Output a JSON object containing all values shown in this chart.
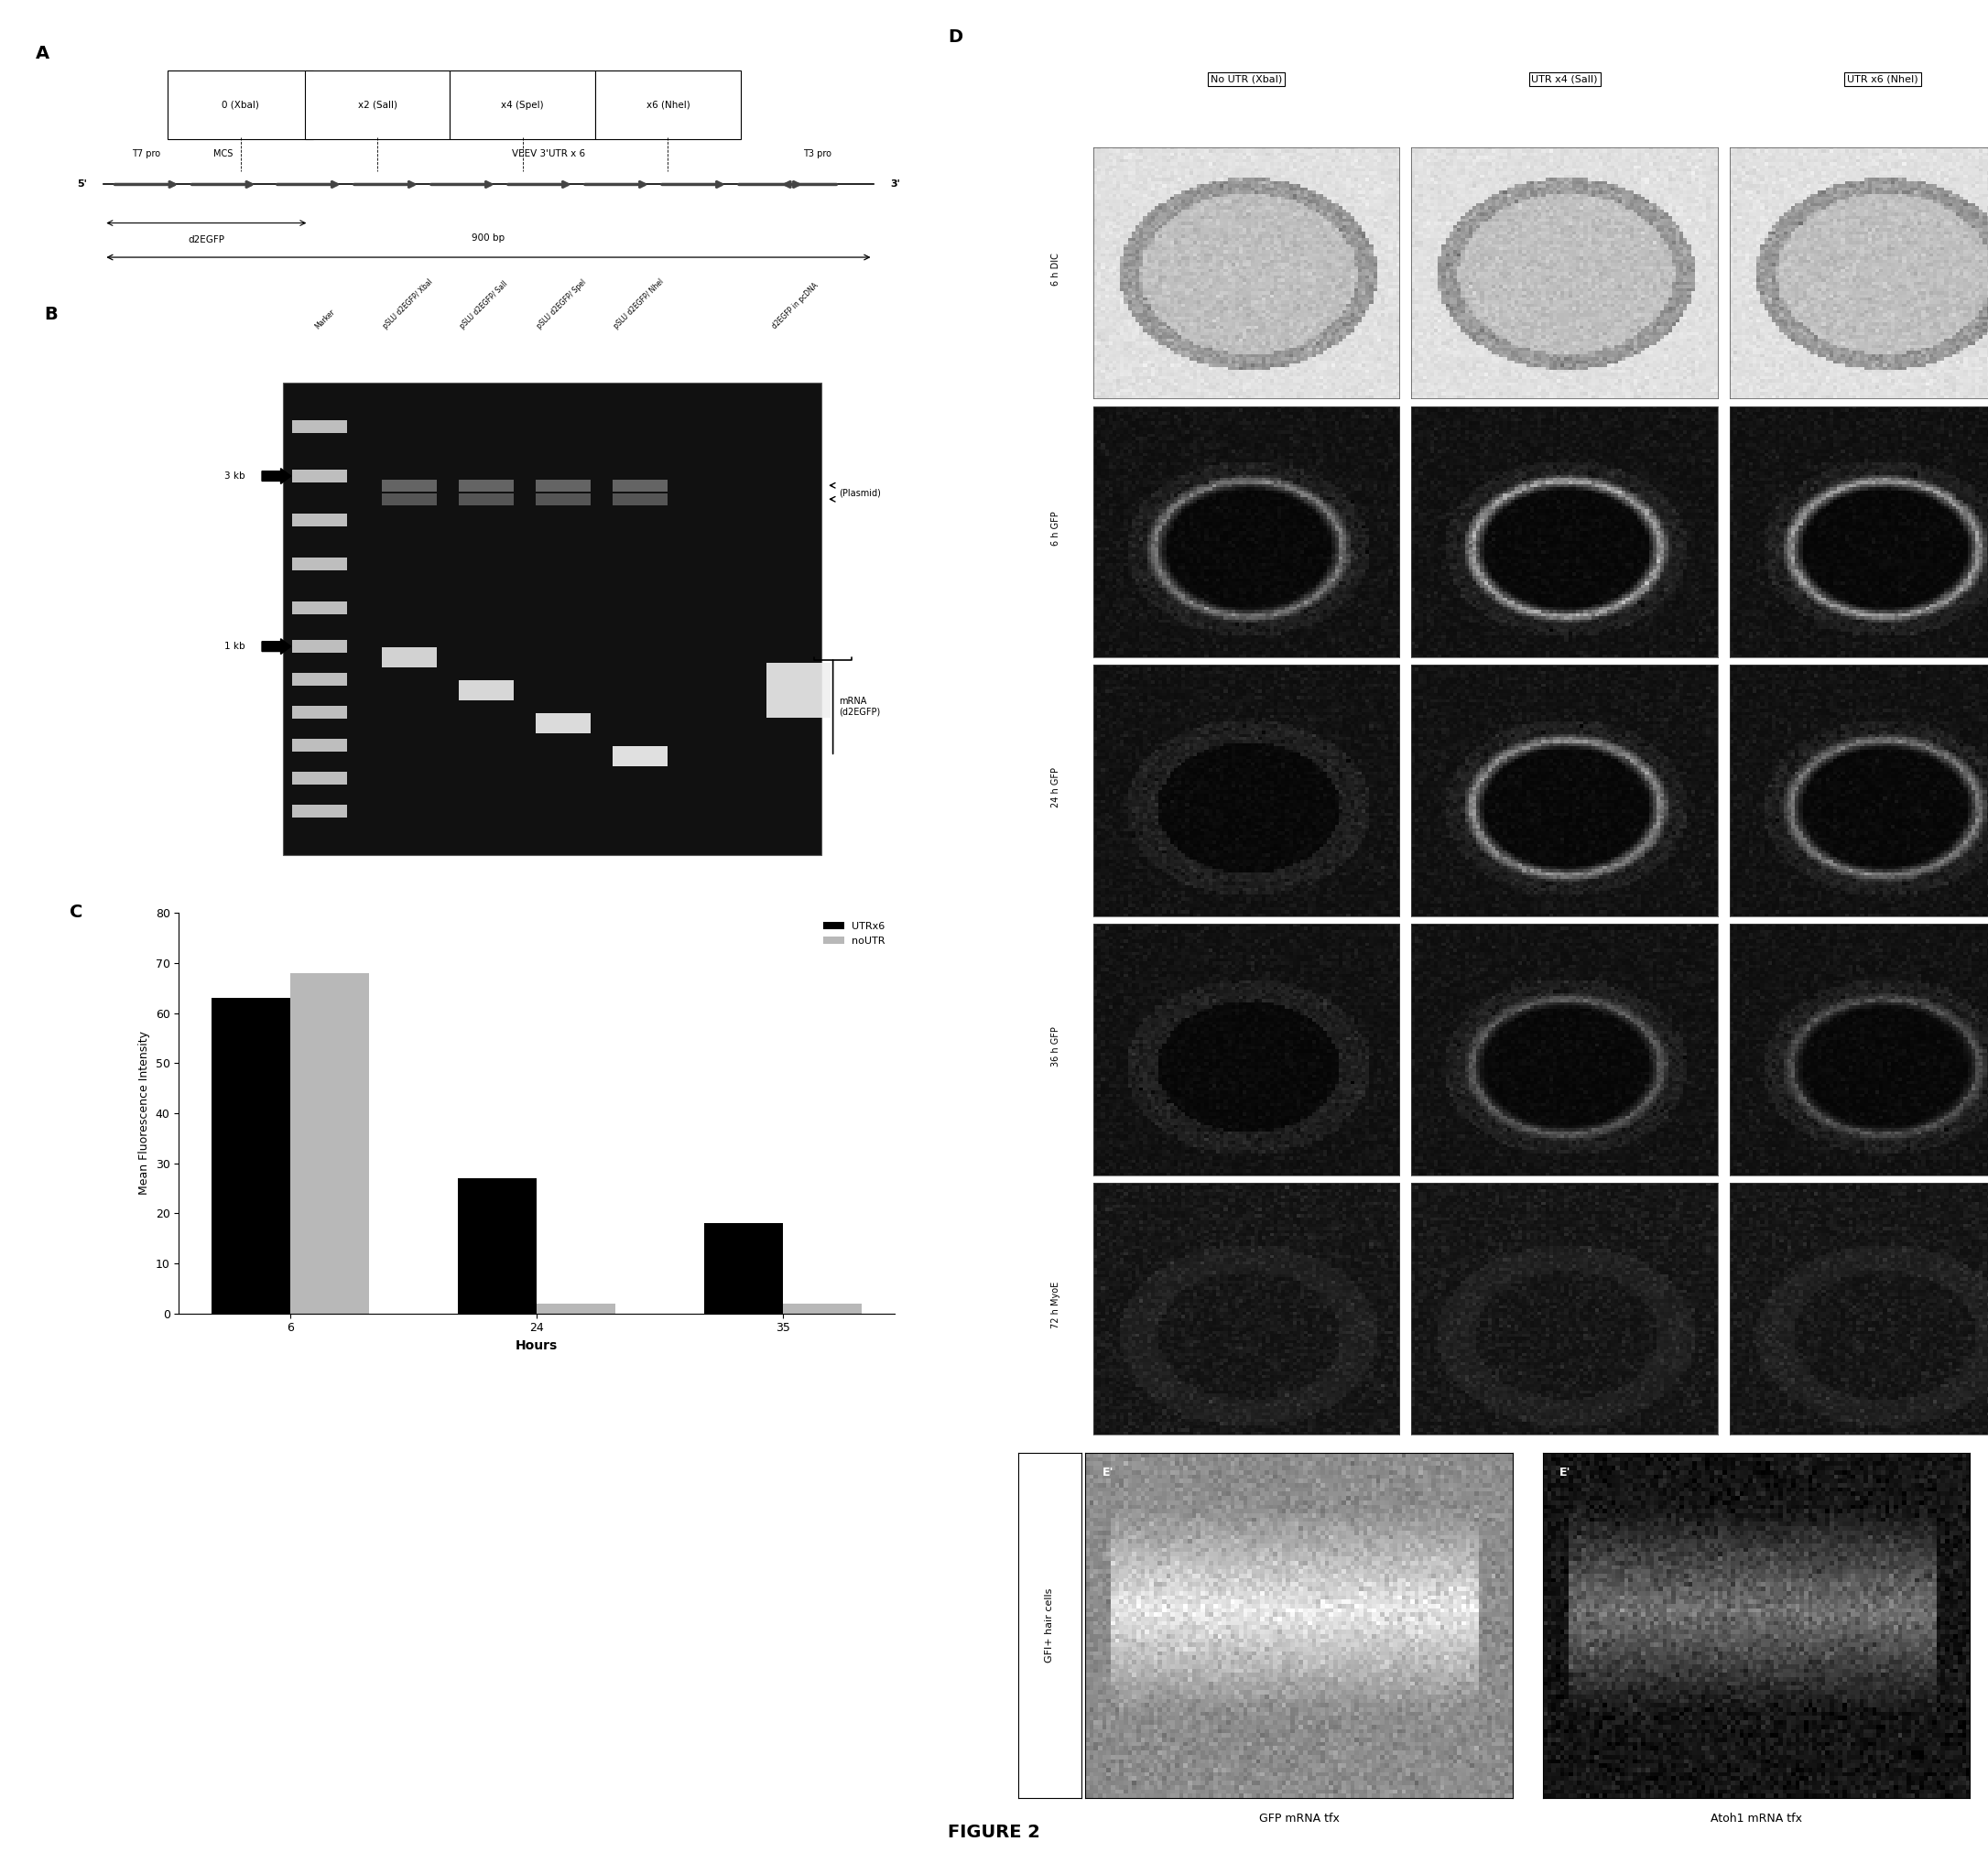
{
  "figure_title": "FIGURE 2",
  "panel_A": {
    "label": "A",
    "boxes": [
      "0 (XbaI)",
      "x2 (SalI)",
      "x4 (SpeI)",
      "x6 (NheI)"
    ],
    "t7_label": "T7 pro",
    "t3_label": "T3 pro",
    "mcs_label": "MCS",
    "d2egfp_label": "d2EGFP",
    "veev_label": "VEEV 3'UTR x 6",
    "scale_label": "900 bp",
    "left_label": "5'",
    "right_label": "3'"
  },
  "panel_B": {
    "label": "B",
    "lane_labels": [
      "Marker",
      "pSLU d2EGFP/ XbaI",
      "pSLU d2EGFP/ SalI",
      "pSLU d2EGFP/ SpeI",
      "pSLU d2EGFP/ NheI",
      "d2EGFP in pcDNA"
    ],
    "size_markers": [
      "3 kb",
      "1 kb"
    ],
    "annotations": [
      "(Plasmid)",
      "mRNA\n(d2EGFP)"
    ]
  },
  "panel_C": {
    "label": "C",
    "xlabel": "Hours",
    "ylabel": "Mean Fluorescence Intensity",
    "hours": [
      6,
      24,
      35
    ],
    "UTRx6_values": [
      63,
      27,
      18
    ],
    "noUTR_values": [
      68,
      2,
      2
    ],
    "legend_labels": [
      "UTRx6",
      "noUTR"
    ],
    "bar_colors": [
      "#000000",
      "#b8b8b8"
    ],
    "ylim": [
      0,
      80
    ],
    "yticks": [
      0,
      10,
      20,
      30,
      40,
      50,
      60,
      70,
      80
    ]
  },
  "panel_D": {
    "label": "D",
    "col_headers": [
      "No UTR (XbaI)",
      "UTR x4 (SalI)",
      "UTR x6 (NheI)"
    ],
    "row_labels": [
      "6 h DIC",
      "6 h GFP",
      "24 h GFP",
      "36 h GFP",
      "72 h MyoE"
    ]
  },
  "panel_E": {
    "captions": [
      "GFP mRNA tfx",
      "Atoh1 mRNA tfx"
    ],
    "y_label": "GFI+ hair cells",
    "e_labels": [
      "E'",
      "E'"
    ]
  },
  "background_color": "#ffffff",
  "label_fontsize": 14,
  "font_size": 9
}
